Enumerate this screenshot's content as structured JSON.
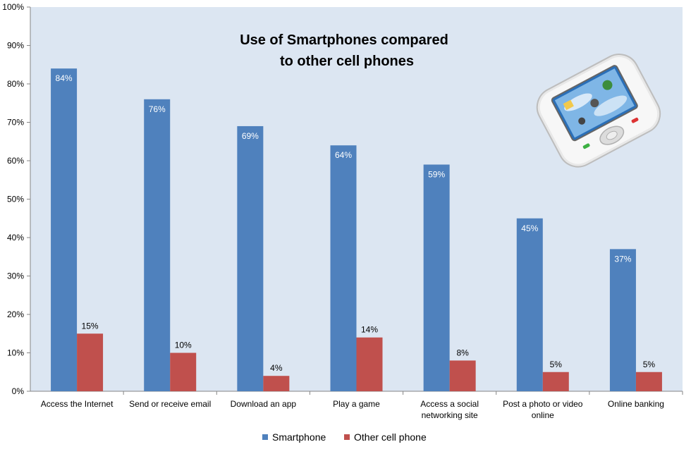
{
  "chart_data": {
    "type": "bar",
    "title_lines": [
      "Use of Smartphones compared",
      "to other cell phones"
    ],
    "categories": [
      [
        "Access the Internet"
      ],
      [
        "Send or receive email"
      ],
      [
        "Download an app"
      ],
      [
        "Play a game"
      ],
      [
        "Access a social",
        "networking site"
      ],
      [
        "Post a photo or video",
        "online"
      ],
      [
        "Online banking"
      ]
    ],
    "series": [
      {
        "name": "Smartphone",
        "color": "#4F81BD",
        "values": [
          84,
          76,
          69,
          64,
          59,
          45,
          37
        ],
        "labels": [
          "84%",
          "76%",
          "69%",
          "64%",
          "59%",
          "45%",
          "37%"
        ]
      },
      {
        "name": "Other cell phone",
        "color": "#C0504D",
        "values": [
          15,
          10,
          4,
          14,
          8,
          5,
          5
        ],
        "labels": [
          "15%",
          "10%",
          "4%",
          "14%",
          "8%",
          "5%",
          "5%"
        ]
      }
    ],
    "ylim": [
      0,
      100
    ],
    "yticks": [
      0,
      10,
      20,
      30,
      40,
      50,
      60,
      70,
      80,
      90,
      100
    ],
    "ytick_labels": [
      "0%",
      "10%",
      "20%",
      "30%",
      "40%",
      "50%",
      "60%",
      "70%",
      "80%",
      "90%",
      "100%"
    ],
    "grid": false,
    "legend_position": "bottom",
    "plot_background": "#DCE6F2",
    "image": "smartphone-illustration"
  }
}
